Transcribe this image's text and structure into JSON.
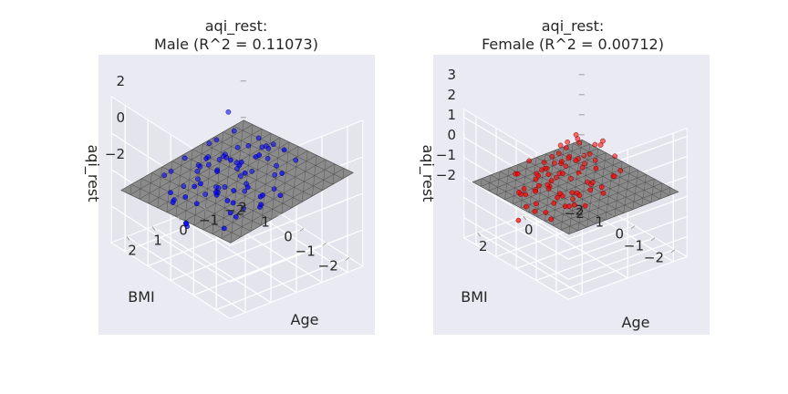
{
  "chart_data": [
    {
      "type": "scatter3d",
      "title_line1": "aqi_rest:",
      "title_line2": "Male (R^2 = 0.11073)",
      "xlabel": "Age",
      "ylabel": "BMI",
      "zlabel": "aqi_rest",
      "x_ticks": [
        "2",
        "1",
        "0",
        "−1",
        "−2"
      ],
      "y_ticks": [
        "−2",
        "−1",
        "0",
        "1",
        "2"
      ],
      "z_ticks": [
        "2",
        "0",
        "−2"
      ],
      "xlim": [
        -2.6,
        2.6
      ],
      "ylim": [
        -2.6,
        2.6
      ],
      "zlim": [
        -4,
        4
      ],
      "grid": true,
      "point_color": "#0000ff",
      "surface_color": "#808080",
      "surface": {
        "intercept": 0.0,
        "slope_age": -0.25,
        "slope_bmi": -0.2
      },
      "points": [
        {
          "age": 0.2,
          "bmi": -1.6,
          "z": 3.2
        },
        {
          "age": 1.8,
          "bmi": -1.2,
          "z": 1.6
        },
        {
          "age": -0.6,
          "bmi": -0.6,
          "z": 2.1
        },
        {
          "age": -0.2,
          "bmi": 0.2,
          "z": 1.6
        },
        {
          "age": 1.6,
          "bmi": 0.4,
          "z": -1.9
        },
        {
          "age": -1.8,
          "bmi": 2.4,
          "z": 0.9
        },
        {
          "age": 0.4,
          "bmi": 1.8,
          "z": -3.5
        },
        {
          "age": 0.2,
          "bmi": 2.0,
          "z": -3.8
        },
        {
          "age": 0.6,
          "bmi": 0.2,
          "z": 0.8
        },
        {
          "age": -0.8,
          "bmi": 0.4,
          "z": 1.2
        },
        {
          "age": 0.0,
          "bmi": 0.6,
          "z": 0.9
        },
        {
          "age": 0.4,
          "bmi": -0.6,
          "z": 1.0
        },
        {
          "age": -0.4,
          "bmi": -0.2,
          "z": 0.5
        },
        {
          "age": 0.8,
          "bmi": 0.8,
          "z": 0.7
        },
        {
          "age": -1.2,
          "bmi": 0.0,
          "z": 0.6
        },
        {
          "age": 1.0,
          "bmi": -0.2,
          "z": 0.4
        },
        {
          "age": -0.2,
          "bmi": 1.0,
          "z": 0.3
        },
        {
          "age": 0.2,
          "bmi": 1.4,
          "z": -0.2
        },
        {
          "age": -0.6,
          "bmi": 1.2,
          "z": 0.2
        },
        {
          "age": 1.2,
          "bmi": 1.0,
          "z": -0.4
        },
        {
          "age": -1.0,
          "bmi": -0.6,
          "z": 0.8
        },
        {
          "age": 0.6,
          "bmi": -1.0,
          "z": 0.6
        },
        {
          "age": -0.4,
          "bmi": -1.2,
          "z": 1.1
        },
        {
          "age": 0.0,
          "bmi": -0.4,
          "z": 0.2
        },
        {
          "age": 0.8,
          "bmi": 0.0,
          "z": -0.3
        },
        {
          "age": -0.8,
          "bmi": 0.8,
          "z": -0.2
        },
        {
          "age": 1.4,
          "bmi": 0.2,
          "z": -0.6
        },
        {
          "age": -1.4,
          "bmi": 0.6,
          "z": 0.2
        },
        {
          "age": 0.4,
          "bmi": 0.4,
          "z": -0.7
        },
        {
          "age": -0.2,
          "bmi": -0.8,
          "z": -0.3
        },
        {
          "age": 0.6,
          "bmi": 1.2,
          "z": -0.9
        },
        {
          "age": -0.6,
          "bmi": 0.2,
          "z": -0.8
        },
        {
          "age": 1.0,
          "bmi": 0.6,
          "z": 0.2
        },
        {
          "age": -1.0,
          "bmi": 1.4,
          "z": -0.5
        },
        {
          "age": 0.2,
          "bmi": -0.2,
          "z": 1.3
        },
        {
          "age": -0.4,
          "bmi": 0.6,
          "z": -1.2
        },
        {
          "age": 1.6,
          "bmi": -0.4,
          "z": 0.5
        },
        {
          "age": -1.6,
          "bmi": 0.2,
          "z": 1.0
        },
        {
          "age": 0.0,
          "bmi": 1.6,
          "z": -1.4
        },
        {
          "age": 0.8,
          "bmi": -0.6,
          "z": -0.8
        },
        {
          "age": -0.8,
          "bmi": -0.2,
          "z": 1.6
        },
        {
          "age": 0.4,
          "bmi": 0.8,
          "z": 0.5
        },
        {
          "age": -1.2,
          "bmi": 1.0,
          "z": -1.0
        },
        {
          "age": 1.2,
          "bmi": -0.8,
          "z": 1.0
        },
        {
          "age": -0.2,
          "bmi": 0.4,
          "z": -1.6
        },
        {
          "age": 0.6,
          "bmi": 1.6,
          "z": -1.8
        },
        {
          "age": -1.4,
          "bmi": -0.4,
          "z": 0.0
        },
        {
          "age": 1.8,
          "bmi": 0.8,
          "z": -0.8
        },
        {
          "age": -0.6,
          "bmi": 1.6,
          "z": -2.2
        },
        {
          "age": 0.2,
          "bmi": 1.0,
          "z": 1.4
        },
        {
          "age": -1.0,
          "bmi": 0.0,
          "z": -1.3
        },
        {
          "age": 1.4,
          "bmi": 1.2,
          "z": -1.2
        },
        {
          "age": 0.0,
          "bmi": -1.0,
          "z": -0.6
        },
        {
          "age": -0.4,
          "bmi": 1.8,
          "z": -0.4
        },
        {
          "age": 1.0,
          "bmi": 1.8,
          "z": -1.5
        },
        {
          "age": -1.8,
          "bmi": 1.2,
          "z": -0.6
        },
        {
          "age": 0.6,
          "bmi": 0.6,
          "z": 1.2
        },
        {
          "age": -0.8,
          "bmi": -1.0,
          "z": -0.4
        },
        {
          "age": 0.2,
          "bmi": 0.2,
          "z": -1.1
        },
        {
          "age": -0.2,
          "bmi": -1.4,
          "z": 0.6
        },
        {
          "age": 1.2,
          "bmi": 0.4,
          "z": 0.9
        },
        {
          "age": -1.2,
          "bmi": 0.4,
          "z": 1.4
        },
        {
          "age": 0.4,
          "bmi": -0.4,
          "z": -1.4
        },
        {
          "age": -0.6,
          "bmi": 0.8,
          "z": 1.8
        },
        {
          "age": 0.8,
          "bmi": 1.4,
          "z": 0.6
        },
        {
          "age": -1.6,
          "bmi": 1.6,
          "z": -1.1
        },
        {
          "age": 1.6,
          "bmi": 1.4,
          "z": 0.1
        },
        {
          "age": -0.4,
          "bmi": -0.6,
          "z": -1.0
        },
        {
          "age": 0.0,
          "bmi": 0.0,
          "z": 0.7
        },
        {
          "age": 1.4,
          "bmi": -1.0,
          "z": -1.0
        },
        {
          "age": -1.4,
          "bmi": -1.0,
          "z": 1.2
        },
        {
          "age": 0.6,
          "bmi": -0.2,
          "z": 1.8
        },
        {
          "age": -0.8,
          "bmi": 1.8,
          "z": 0.4
        },
        {
          "age": 1.0,
          "bmi": -1.4,
          "z": 0.2
        },
        {
          "age": -1.0,
          "bmi": 2.0,
          "z": -1.6
        },
        {
          "age": -2.2,
          "bmi": 0.4,
          "z": 0.2
        },
        {
          "age": 0.8,
          "bmi": 2.0,
          "z": -0.6
        }
      ]
    },
    {
      "type": "scatter3d",
      "title_line1": "aqi_rest:",
      "title_line2": "Female (R^2 = 0.00712)",
      "xlabel": "Age",
      "ylabel": "BMI",
      "zlabel": "aqi_rest",
      "x_ticks": [
        "2",
        "0",
        "−2"
      ],
      "y_ticks": [
        "−2",
        "−1",
        "0",
        "1",
        "2"
      ],
      "z_ticks": [
        "3",
        "2",
        "1",
        "0",
        "−1",
        "−2"
      ],
      "xlim": [
        -2.6,
        2.6
      ],
      "ylim": [
        -2.6,
        2.6
      ],
      "zlim": [
        -3,
        3.4
      ],
      "grid": true,
      "point_color": "#ff0000",
      "surface_color": "#808080",
      "surface": {
        "intercept": 0.0,
        "slope_age": -0.03,
        "slope_bmi": -0.05
      },
      "points": [
        {
          "age": 0.2,
          "bmi": -1.2,
          "z": 2.9
        },
        {
          "age": -0.4,
          "bmi": -0.8,
          "z": 2.4
        },
        {
          "age": 0.8,
          "bmi": -0.6,
          "z": 2.2
        },
        {
          "age": -1.2,
          "bmi": 0.0,
          "z": 1.8
        },
        {
          "age": 1.2,
          "bmi": 0.2,
          "z": 1.6
        },
        {
          "age": 0.0,
          "bmi": 0.4,
          "z": 2.0
        },
        {
          "age": -0.2,
          "bmi": -0.2,
          "z": 1.6
        },
        {
          "age": 0.6,
          "bmi": -0.2,
          "z": 1.4
        },
        {
          "age": -0.8,
          "bmi": 0.2,
          "z": 1.2
        },
        {
          "age": 0.4,
          "bmi": 0.6,
          "z": 1.0
        },
        {
          "age": -0.4,
          "bmi": 0.8,
          "z": 0.8
        },
        {
          "age": 1.0,
          "bmi": 0.8,
          "z": 0.6
        },
        {
          "age": -1.0,
          "bmi": 1.0,
          "z": 0.4
        },
        {
          "age": 0.2,
          "bmi": 1.2,
          "z": 0.3
        },
        {
          "age": 0.6,
          "bmi": 1.0,
          "z": 0.5
        },
        {
          "age": -0.6,
          "bmi": 1.4,
          "z": 0.1
        },
        {
          "age": 1.4,
          "bmi": 0.4,
          "z": 0.2
        },
        {
          "age": -1.4,
          "bmi": 0.6,
          "z": 0.4
        },
        {
          "age": 0.0,
          "bmi": -0.6,
          "z": 0.6
        },
        {
          "age": 0.8,
          "bmi": 0.0,
          "z": -0.2
        },
        {
          "age": -0.8,
          "bmi": -0.4,
          "z": -0.1
        },
        {
          "age": 0.4,
          "bmi": 0.2,
          "z": -0.4
        },
        {
          "age": -0.2,
          "bmi": 0.4,
          "z": -0.6
        },
        {
          "age": 1.2,
          "bmi": 1.2,
          "z": -0.3
        },
        {
          "age": -1.2,
          "bmi": 1.2,
          "z": -0.5
        },
        {
          "age": 0.2,
          "bmi": 1.6,
          "z": -0.8
        },
        {
          "age": -0.4,
          "bmi": 1.8,
          "z": -0.6
        },
        {
          "age": 1.0,
          "bmi": 1.6,
          "z": -0.9
        },
        {
          "age": -1.6,
          "bmi": 1.8,
          "z": -0.4
        },
        {
          "age": 0.6,
          "bmi": 1.8,
          "z": -1.2
        },
        {
          "age": 0.0,
          "bmi": 2.0,
          "z": -1.4
        },
        {
          "age": 1.8,
          "bmi": 0.8,
          "z": -1.4
        },
        {
          "age": -0.8,
          "bmi": 2.2,
          "z": -1.6
        },
        {
          "age": 0.4,
          "bmi": 2.0,
          "z": -2.0
        },
        {
          "age": -0.2,
          "bmi": 1.0,
          "z": -1.0
        },
        {
          "age": 1.6,
          "bmi": -0.6,
          "z": -0.6
        },
        {
          "age": -1.8,
          "bmi": -0.2,
          "z": 0.2
        },
        {
          "age": 0.2,
          "bmi": -1.0,
          "z": 0.8
        },
        {
          "age": -0.6,
          "bmi": -1.2,
          "z": 1.0
        },
        {
          "age": 1.0,
          "bmi": -1.0,
          "z": 0.4
        },
        {
          "age": -1.0,
          "bmi": -0.8,
          "z": 0.6
        },
        {
          "age": 0.8,
          "bmi": 0.6,
          "z": 0.9
        },
        {
          "age": -0.4,
          "bmi": 0.0,
          "z": 1.0
        },
        {
          "age": 0.0,
          "bmi": 0.8,
          "z": 0.2
        },
        {
          "age": 1.4,
          "bmi": 1.4,
          "z": 0.4
        },
        {
          "age": -1.4,
          "bmi": 1.4,
          "z": 0.8
        },
        {
          "age": 0.6,
          "bmi": 0.4,
          "z": -0.8
        },
        {
          "age": -0.6,
          "bmi": 0.6,
          "z": -0.9
        },
        {
          "age": 0.2,
          "bmi": 0.0,
          "z": 0.5
        },
        {
          "age": -0.2,
          "bmi": 1.4,
          "z": 0.6
        },
        {
          "age": 1.2,
          "bmi": -0.4,
          "z": 1.2
        },
        {
          "age": -1.2,
          "bmi": -0.6,
          "z": 1.4
        },
        {
          "age": 0.4,
          "bmi": -0.4,
          "z": -0.5
        },
        {
          "age": -0.8,
          "bmi": 1.6,
          "z": 0.0
        },
        {
          "age": 0.8,
          "bmi": 1.4,
          "z": 0.8
        },
        {
          "age": -1.0,
          "bmi": 0.4,
          "z": -0.8
        },
        {
          "age": 1.6,
          "bmi": 1.0,
          "z": -0.2
        },
        {
          "age": -1.6,
          "bmi": 0.8,
          "z": -0.2
        },
        {
          "age": 0.0,
          "bmi": -0.2,
          "z": -0.3
        },
        {
          "age": 0.4,
          "bmi": 1.4,
          "z": -0.1
        },
        {
          "age": -0.4,
          "bmi": -0.4,
          "z": 0.3
        },
        {
          "age": 1.0,
          "bmi": 0.2,
          "z": 0.2
        },
        {
          "age": -0.2,
          "bmi": 2.2,
          "z": -1.0
        },
        {
          "age": 0.6,
          "bmi": 2.2,
          "z": -0.4
        },
        {
          "age": -1.2,
          "bmi": 2.0,
          "z": -1.0
        },
        {
          "age": 0.2,
          "bmi": 0.6,
          "z": 1.4
        },
        {
          "age": -0.6,
          "bmi": 0.2,
          "z": -1.3
        },
        {
          "age": 1.4,
          "bmi": -0.2,
          "z": 0.8
        },
        {
          "age": -1.4,
          "bmi": 0.2,
          "z": -1.0
        },
        {
          "age": 0.8,
          "bmi": -0.4,
          "z": -0.4
        },
        {
          "age": -0.8,
          "bmi": 0.8,
          "z": 1.6
        },
        {
          "age": 0.0,
          "bmi": 1.2,
          "z": -0.4
        },
        {
          "age": 1.2,
          "bmi": 0.6,
          "z": -0.7
        },
        {
          "age": -0.4,
          "bmi": 1.2,
          "z": 1.2
        },
        {
          "age": 0.4,
          "bmi": -0.8,
          "z": 1.6
        },
        {
          "age": -1.0,
          "bmi": 1.6,
          "z": 0.6
        },
        {
          "age": 0.6,
          "bmi": 0.8,
          "z": -1.5
        },
        {
          "age": -0.6,
          "bmi": 1.0,
          "z": -1.8
        },
        {
          "age": 0.2,
          "bmi": 1.8,
          "z": -2.2
        },
        {
          "age": -0.2,
          "bmi": 0.2,
          "z": 2.4
        }
      ]
    }
  ]
}
